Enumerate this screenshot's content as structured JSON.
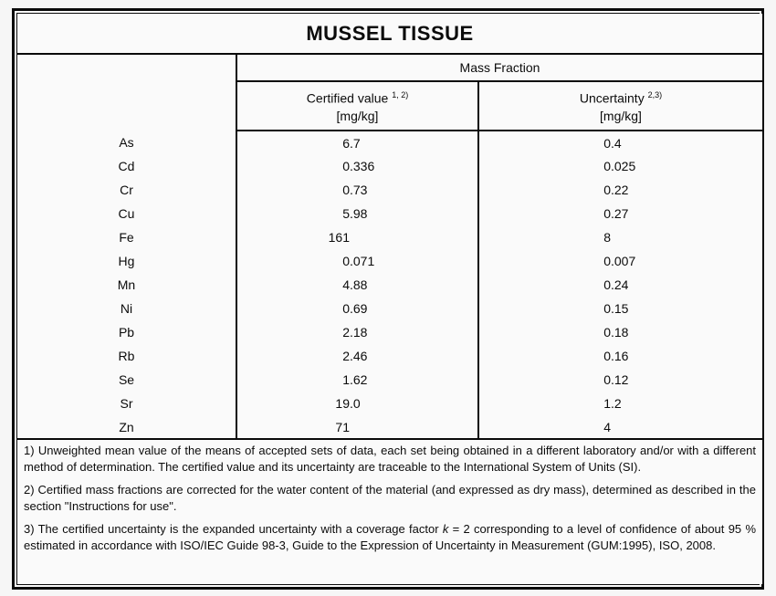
{
  "table": {
    "title": "MUSSEL TISSUE",
    "mass_fraction_label": "Mass Fraction",
    "columns": {
      "certified": {
        "label": "Certified value",
        "sup": "1, 2)",
        "unit": "[mg/kg]"
      },
      "uncertainty": {
        "label": "Uncertainty",
        "sup": "2,3)",
        "unit": "[mg/kg]"
      }
    },
    "rows": [
      {
        "element": "As",
        "certified": "6.7",
        "uncertainty": "0.4"
      },
      {
        "element": "Cd",
        "certified": "0.336",
        "uncertainty": "0.025"
      },
      {
        "element": "Cr",
        "certified": "0.73",
        "uncertainty": "0.22"
      },
      {
        "element": "Cu",
        "certified": "5.98",
        "uncertainty": "0.27"
      },
      {
        "element": "Fe",
        "certified": "161",
        "uncertainty": "8"
      },
      {
        "element": "Hg",
        "certified": "0.071",
        "uncertainty": "0.007"
      },
      {
        "element": "Mn",
        "certified": "4.88",
        "uncertainty": "0.24"
      },
      {
        "element": "Ni",
        "certified": "0.69",
        "uncertainty": "0.15"
      },
      {
        "element": "Pb",
        "certified": "2.18",
        "uncertainty": "0.18"
      },
      {
        "element": "Rb",
        "certified": "2.46",
        "uncertainty": "0.16"
      },
      {
        "element": "Se",
        "certified": "1.62",
        "uncertainty": "0.12"
      },
      {
        "element": "Sr",
        "certified": "19.0",
        "uncertainty": "1.2"
      },
      {
        "element": "Zn",
        "certified": "71",
        "uncertainty": "4"
      }
    ]
  },
  "footnotes": [
    {
      "parts": [
        {
          "t": "1) Unweighted mean value of the means of accepted sets of data, each set being obtained in a different laboratory and/or with a different method of determination. The certified value and its uncertainty are traceable to the International System of Units (SI)."
        }
      ]
    },
    {
      "parts": [
        {
          "t": "2) Certified mass fractions are corrected for the water content of the material (and expressed as dry mass), determined as described in the section \"Instructions for use\"."
        }
      ]
    },
    {
      "parts": [
        {
          "t": "3) The certified uncertainty is the expanded uncertainty with a coverage factor "
        },
        {
          "t": "k",
          "italic": true
        },
        {
          "t": " = 2 corresponding to a level of confidence of about 95 % estimated in accordance with ISO/IEC Guide 98-3, Guide to the Expression of Uncertainty in Measurement (GUM:1995), ISO, 2008."
        }
      ]
    }
  ],
  "colors": {
    "page_background": "#f6f6f6",
    "cell_background": "#fafafa",
    "border": "#0a0a0a",
    "text": "#0b0b0b"
  }
}
